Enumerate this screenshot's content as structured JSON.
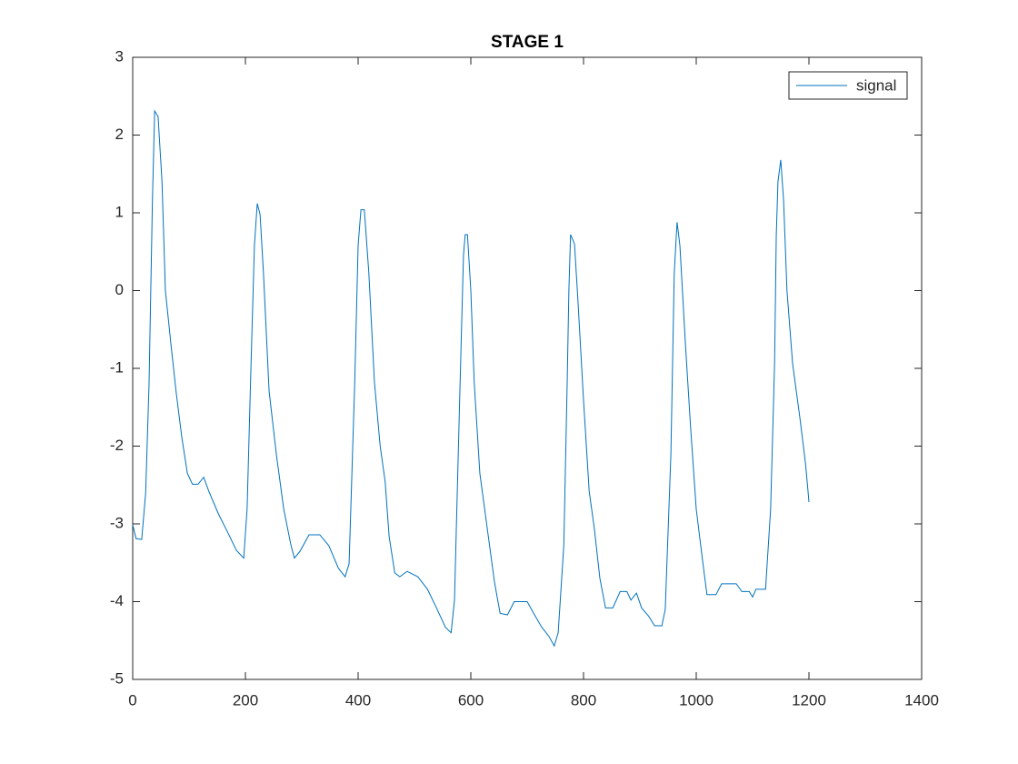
{
  "chart_data": {
    "type": "line",
    "title": "STAGE 1",
    "x": [
      0,
      6,
      16,
      23,
      29,
      35,
      39,
      45,
      52,
      58,
      68,
      77,
      87,
      97,
      106,
      116,
      126,
      135,
      152,
      168,
      184,
      197,
      203,
      210,
      216,
      221,
      226,
      232,
      242,
      255,
      268,
      281,
      287,
      297,
      313,
      332,
      348,
      365,
      377,
      384,
      394,
      400,
      405,
      411,
      419,
      429,
      439,
      448,
      455,
      465,
      474,
      487,
      506,
      523,
      539,
      555,
      565,
      571,
      581,
      587,
      590,
      594,
      600,
      606,
      616,
      629,
      642,
      652,
      665,
      677,
      700,
      713,
      726,
      739,
      748,
      755,
      765,
      771,
      774,
      777,
      784,
      790,
      800,
      810,
      819,
      829,
      839,
      852,
      865,
      877,
      884,
      894,
      903,
      916,
      926,
      939,
      945,
      955,
      961,
      966,
      971,
      981,
      990,
      1000,
      1010,
      1019,
      1035,
      1045,
      1071,
      1081,
      1094,
      1100,
      1106,
      1123,
      1132,
      1139,
      1142,
      1145,
      1150,
      1155,
      1161,
      1171,
      1184,
      1194,
      1198,
      1200
    ],
    "series": [
      {
        "name": "signal",
        "color": "#0072bd",
        "values": [
          -3.01,
          -3.19,
          -3.2,
          -2.6,
          -1.2,
          1.16,
          2.31,
          2.24,
          1.4,
          0.0,
          -0.7,
          -1.3,
          -1.88,
          -2.35,
          -2.49,
          -2.49,
          -2.4,
          -2.58,
          -2.87,
          -3.1,
          -3.34,
          -3.44,
          -2.81,
          -0.94,
          0.58,
          1.12,
          0.98,
          0.23,
          -1.29,
          -2.11,
          -2.81,
          -3.28,
          -3.44,
          -3.35,
          -3.14,
          -3.14,
          -3.28,
          -3.57,
          -3.68,
          -3.51,
          -1.18,
          0.58,
          1.04,
          1.04,
          0.23,
          -1.18,
          -1.99,
          -2.46,
          -3.16,
          -3.63,
          -3.68,
          -3.61,
          -3.68,
          -3.84,
          -4.08,
          -4.33,
          -4.4,
          -3.98,
          -1.18,
          0.46,
          0.72,
          0.72,
          0.0,
          -1.18,
          -2.35,
          -3.05,
          -3.75,
          -4.15,
          -4.17,
          -4.0,
          -4.0,
          -4.17,
          -4.33,
          -4.45,
          -4.57,
          -4.4,
          -3.28,
          -1.18,
          0.0,
          0.72,
          0.6,
          -0.12,
          -1.41,
          -2.58,
          -3.05,
          -3.7,
          -4.08,
          -4.08,
          -3.87,
          -3.87,
          -3.98,
          -3.89,
          -4.08,
          -4.19,
          -4.31,
          -4.31,
          -4.1,
          -2.11,
          0.23,
          0.88,
          0.58,
          -0.71,
          -1.76,
          -2.81,
          -3.4,
          -3.91,
          -3.91,
          -3.77,
          -3.77,
          -3.87,
          -3.87,
          -3.94,
          -3.84,
          -3.84,
          -2.81,
          -0.94,
          0.7,
          1.4,
          1.68,
          1.16,
          0.0,
          -0.94,
          -1.64,
          -2.23,
          -2.55,
          -2.72
        ]
      }
    ],
    "xlim": [
      0,
      1400
    ],
    "xticks": [
      0,
      200,
      400,
      600,
      800,
      1000,
      1200,
      1400
    ],
    "ylim": [
      -5,
      3
    ],
    "yticks": [
      -5,
      -4,
      -3,
      -2,
      -1,
      0,
      1,
      2,
      3
    ],
    "legend": "upper right",
    "grid": false
  }
}
